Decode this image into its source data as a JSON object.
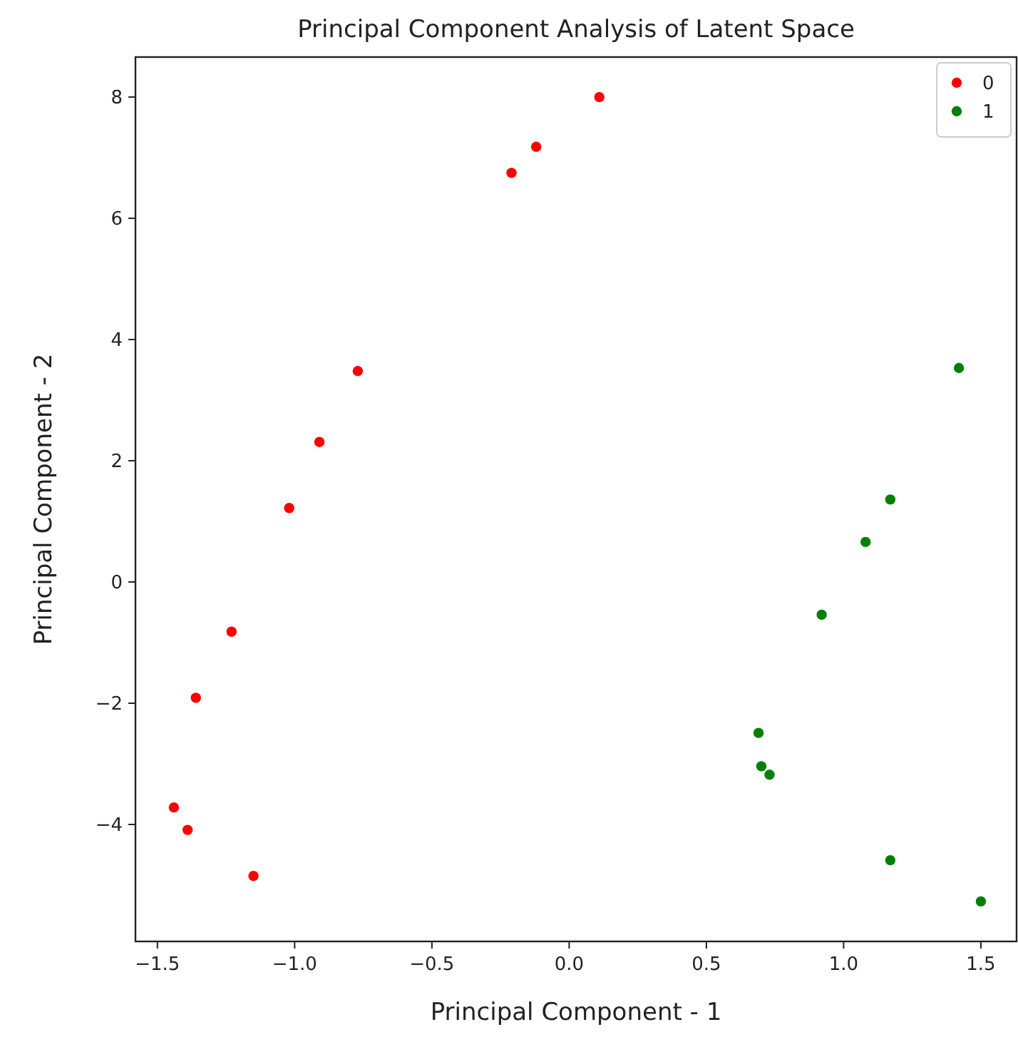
{
  "chart_data": {
    "type": "scatter",
    "title": "Principal Component Analysis of Latent Space",
    "xlabel": "Principal Component - 1",
    "ylabel": "Principal Component - 2",
    "xlim": [
      -1.58,
      1.63
    ],
    "ylim": [
      -5.93,
      8.66
    ],
    "xticks": [
      {
        "value": -1.5,
        "label": "−1.5"
      },
      {
        "value": -1,
        "label": "−1.0"
      },
      {
        "value": -0.5,
        "label": "−0.5"
      },
      {
        "value": 0,
        "label": "0.0"
      },
      {
        "value": 0.5,
        "label": "0.5"
      },
      {
        "value": 1,
        "label": "1.0"
      },
      {
        "value": 1.5,
        "label": "1.5"
      }
    ],
    "yticks": [
      {
        "value": -4,
        "label": "−4"
      },
      {
        "value": -2,
        "label": "−2"
      },
      0,
      2,
      4,
      6,
      8
    ],
    "grid": false,
    "legend": "top right",
    "marker": "circle",
    "series": [
      {
        "name": "0",
        "color": "#ff0000",
        "x": [
          0.11,
          -0.12,
          -0.21,
          -0.77,
          -0.91,
          -1.02,
          -1.23,
          -1.36,
          -1.44,
          -1.39,
          -1.15
        ],
        "values": [
          8.0,
          7.18,
          6.75,
          3.48,
          2.31,
          1.22,
          -0.82,
          -1.91,
          -3.72,
          -4.09,
          -4.85
        ]
      },
      {
        "name": "1",
        "color": "#008000",
        "x": [
          1.42,
          1.17,
          1.08,
          0.92,
          0.69,
          0.7,
          0.73,
          1.17,
          1.5
        ],
        "values": [
          3.53,
          1.36,
          0.66,
          -0.54,
          -2.49,
          -3.04,
          -3.18,
          -4.59,
          -5.27
        ]
      }
    ]
  }
}
